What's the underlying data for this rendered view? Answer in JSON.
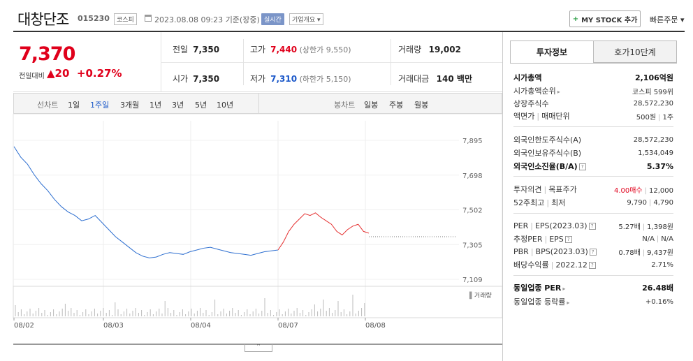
{
  "header": {
    "name": "대창단조",
    "code": "015230",
    "market": "코스피",
    "datetime": "2023.08.08 09:23",
    "status": "기준(장중)",
    "live_badge": "실시간",
    "info_button": "기업개요",
    "mystock_button": "MY STOCK 추가",
    "quick_order": "빠른주문"
  },
  "quote": {
    "price": "7,370",
    "change_label": "전일대비",
    "change_value": "20",
    "change_rate": "+0.27%",
    "prev_label": "전일",
    "prev_value": "7,350",
    "open_label": "시가",
    "open_value": "7,350",
    "high_label": "고가",
    "high_value": "7,440",
    "upper_limit": "(상한가 9,550)",
    "low_label": "저가",
    "low_value": "7,310",
    "lower_limit": "(하한가 5,150)",
    "volume_label": "거래량",
    "volume_value": "19,002",
    "amount_label": "거래대금",
    "amount_value": "140 백만"
  },
  "chart_tabs": {
    "line_label": "선차트",
    "periods": [
      "1일",
      "1주일",
      "3개월",
      "1년",
      "3년",
      "5년",
      "10년"
    ],
    "active_period": "1주일",
    "candle_label": "봉차트",
    "candles": [
      "일봉",
      "주봉",
      "월봉"
    ]
  },
  "chart_data": {
    "type": "line",
    "yticks": [
      "7,895",
      "7,698",
      "7,502",
      "7,305",
      "7,109"
    ],
    "ylim": [
      7109,
      7895
    ],
    "xticks": [
      "08/02",
      "08/03",
      "08/04",
      "08/07",
      "08/08"
    ],
    "volume_label": "거래량",
    "prev_close": 7350,
    "series": [
      {
        "color": "#2e6fd0",
        "values": [
          7860,
          7800,
          7760,
          7700,
          7650,
          7610,
          7560,
          7520,
          7490,
          7470,
          7440,
          7450,
          7470,
          7430,
          7390,
          7350,
          7320,
          7290,
          7260,
          7240,
          7230,
          7235,
          7250,
          7260,
          7255,
          7250,
          7265,
          7275,
          7285,
          7290,
          7280,
          7270,
          7260,
          7255,
          7250,
          7245,
          7255,
          7265,
          7270,
          7275
        ]
      },
      {
        "color": "#e53030",
        "values": [
          7275,
          7320,
          7380,
          7420,
          7450,
          7480,
          7470,
          7485,
          7460,
          7440,
          7420,
          7380,
          7360,
          7390,
          7410,
          7420,
          7380,
          7370
        ]
      }
    ]
  },
  "right_panel": {
    "tabs": [
      "투자정보",
      "호가10단계"
    ],
    "rows": [
      {
        "k": "시가총액",
        "v": "2,106억원"
      },
      {
        "k": "시가총액순위",
        "v": "코스피 599위"
      },
      {
        "k": "상장주식수",
        "v": "28,572,230"
      },
      {
        "k": "액면가",
        "k2": "매매단위",
        "v": "500원",
        "v2": "1주"
      },
      {
        "k": "외국인한도주식수(A)",
        "v": "28,572,230"
      },
      {
        "k": "외국인보유주식수(B)",
        "v": "1,534,049"
      },
      {
        "k": "외국인소진율(B/A)",
        "v": "5.37%"
      },
      {
        "k": "투자의견",
        "k2": "목표주가",
        "v": "4.00매수",
        "v2": "12,000"
      },
      {
        "k": "52주최고",
        "k2": "최저",
        "v": "9,790",
        "v2": "4,790"
      },
      {
        "k": "PER",
        "k2": "EPS(2023.03)",
        "v": "5.27배",
        "v2": "1,398원"
      },
      {
        "k": "추정PER",
        "k2": "EPS",
        "v": "N/A",
        "v2": "N/A"
      },
      {
        "k": "PBR",
        "k2": "BPS(2023.03)",
        "v": "0.78배",
        "v2": "9,437원"
      },
      {
        "k": "배당수익률",
        "k2": "2022.12",
        "v": "2.71%"
      },
      {
        "k": "동일업종 PER",
        "v": "26.48배"
      },
      {
        "k": "동일업종 등락률",
        "v": "+0.16%"
      }
    ]
  }
}
